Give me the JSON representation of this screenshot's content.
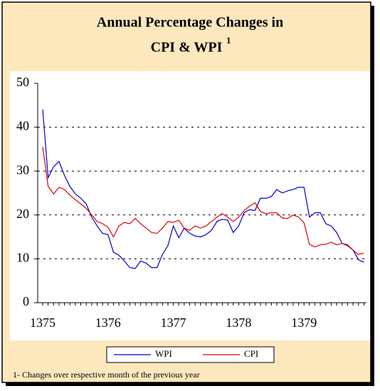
{
  "chart_data": {
    "type": "line",
    "title_lines": [
      "Annual Percentage Changes in",
      "CPI & WPI"
    ],
    "title_footnote_mark": "1",
    "footnote": "1- Changes over respective month of the previous year",
    "x": [
      "1375",
      null,
      null,
      null,
      null,
      null,
      null,
      null,
      null,
      null,
      null,
      null,
      "1376",
      null,
      null,
      null,
      null,
      null,
      null,
      null,
      null,
      null,
      null,
      null,
      "1377",
      null,
      null,
      null,
      null,
      null,
      null,
      null,
      null,
      null,
      null,
      null,
      "1378",
      null,
      null,
      null,
      null,
      null,
      null,
      null,
      null,
      null,
      null,
      null,
      "1379",
      null,
      null,
      null,
      null,
      null,
      null,
      null,
      null,
      null,
      null,
      null
    ],
    "series": [
      {
        "name": "WPI",
        "color": "#0000cc",
        "values": [
          44,
          28.5,
          31,
          32.2,
          29,
          26.5,
          24.8,
          23.8,
          22.5,
          19.5,
          17.5,
          15.8,
          15.5,
          11.5,
          10.8,
          9.5,
          8,
          7.8,
          9.5,
          9,
          8,
          8,
          11,
          13,
          17.5,
          14.8,
          17,
          15.8,
          15.2,
          15,
          15.5,
          16.5,
          18.5,
          19,
          18.8,
          16,
          17.5,
          20.5,
          21.2,
          21,
          23.8,
          23.8,
          24.2,
          25.8,
          25,
          25.5,
          25.8,
          26.3,
          26.3,
          19.5,
          20.5,
          20.5,
          18,
          17.5,
          16,
          13.5,
          13,
          12,
          9.8,
          9.2
        ]
      },
      {
        "name": "CPI",
        "color": "#e00000",
        "values": [
          35.5,
          26.5,
          24.8,
          26.3,
          25.8,
          24.5,
          23.5,
          22.5,
          21.5,
          20,
          18.5,
          18,
          17.2,
          15,
          17.5,
          18.3,
          18,
          19.2,
          18,
          17,
          16,
          15.8,
          17,
          18.5,
          18.3,
          18.8,
          17,
          16.5,
          17.5,
          17,
          17.5,
          18.5,
          19.5,
          20.3,
          19.5,
          18.5,
          19.5,
          21,
          22,
          22.8,
          20.8,
          20.3,
          20.5,
          20.5,
          19.3,
          19.2,
          20,
          19.5,
          18.2,
          13.3,
          12.7,
          13.2,
          13.3,
          13.8,
          13.2,
          13.5,
          13.2,
          12,
          11,
          11.3
        ]
      }
    ],
    "ylim": [
      0,
      50
    ],
    "yticks": [
      0,
      10,
      20,
      30,
      40,
      50
    ],
    "grid": true
  }
}
